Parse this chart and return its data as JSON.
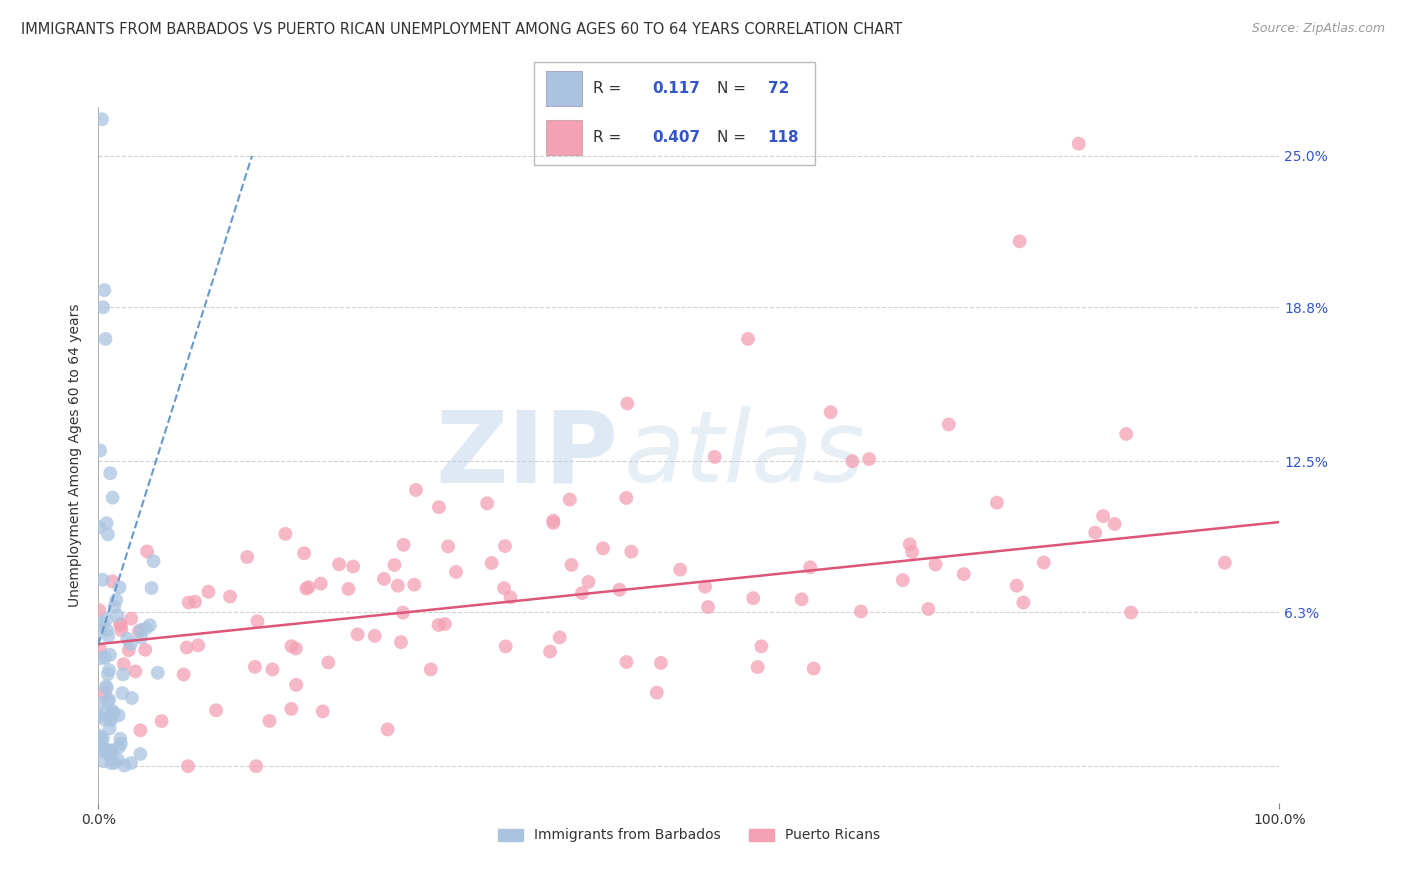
{
  "title": "IMMIGRANTS FROM BARBADOS VS PUERTO RICAN UNEMPLOYMENT AMONG AGES 60 TO 64 YEARS CORRELATION CHART",
  "source": "Source: ZipAtlas.com",
  "ylabel": "Unemployment Among Ages 60 to 64 years",
  "xlim": [
    0,
    100
  ],
  "ylim": [
    -1.5,
    27
  ],
  "yticks": [
    0,
    6.3,
    12.5,
    18.8,
    25.0
  ],
  "ytick_labels": [
    "",
    "6.3%",
    "12.5%",
    "18.8%",
    "25.0%"
  ],
  "xticks": [
    0,
    100
  ],
  "xtick_labels": [
    "0.0%",
    "100.0%"
  ],
  "legend_labels": [
    "Immigrants from Barbados",
    "Puerto Ricans"
  ],
  "R_blue": 0.117,
  "N_blue": 72,
  "R_pink": 0.407,
  "N_pink": 118,
  "blue_color": "#aac4e0",
  "pink_color": "#f4a0b5",
  "blue_line_color": "#6699cc",
  "pink_line_color": "#dd5577",
  "watermark_big": "ZIP",
  "watermark_small": "atlas",
  "title_fontsize": 11,
  "background_color": "#ffffff",
  "grid_color": "#cccccc",
  "legend_R_color": "#3355cc",
  "legend_N_color": "#3355cc"
}
